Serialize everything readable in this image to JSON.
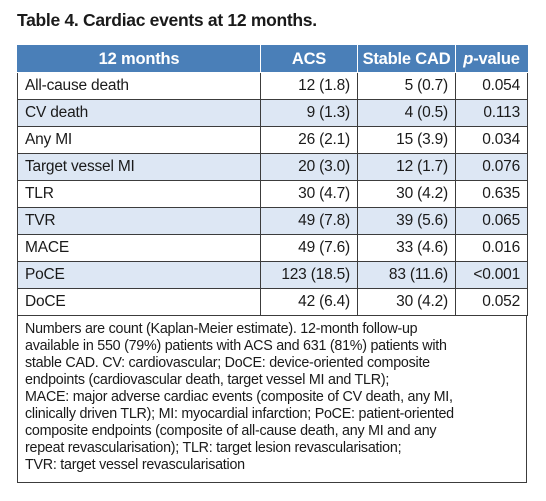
{
  "caption": "Table 4. Cardiac events at 12 months.",
  "header": {
    "col1": "12 months",
    "col2": "ACS",
    "col3": "Stable CAD",
    "col4_italic": "p",
    "col4_rest": "-value"
  },
  "rows": [
    {
      "label": "All-cause death",
      "acs": "12 (1.8)",
      "stable": "5 (0.7)",
      "p": "0.054"
    },
    {
      "label": "CV death",
      "acs": "9 (1.3)",
      "stable": "4 (0.5)",
      "p": "0.113"
    },
    {
      "label": "Any MI",
      "acs": "26 (2.1)",
      "stable": "15 (3.9)",
      "p": "0.034"
    },
    {
      "label": "Target vessel MI",
      "acs": "20 (3.0)",
      "stable": "12 (1.7)",
      "p": "0.076"
    },
    {
      "label": "TLR",
      "acs": "30 (4.7)",
      "stable": "30 (4.2)",
      "p": "0.635"
    },
    {
      "label": "TVR",
      "acs": "49 (7.8)",
      "stable": "39 (5.6)",
      "p": "0.065"
    },
    {
      "label": "MACE",
      "acs": "49 (7.6)",
      "stable": "33 (4.6)",
      "p": "0.016"
    },
    {
      "label": "PoCE",
      "acs": "123 (18.5)",
      "stable": "83 (11.6)",
      "p": "<0.001"
    },
    {
      "label": "DoCE",
      "acs": "42 (6.4)",
      "stable": "30 (4.2)",
      "p": "0.052"
    }
  ],
  "footnote_lines": [
    "Numbers are count (Kaplan-Meier estimate). 12-month follow-up",
    "available in 550 (79%) patients with ACS and 631 (81%) patients with",
    "stable CAD. CV: cardiovascular; DoCE: device-oriented composite",
    "endpoints (cardiovascular death, target vessel MI and TLR);",
    "MACE: major adverse cardiac events (composite of CV death, any MI,",
    "clinically driven TLR); MI: myocardial infarction; PoCE: patient-oriented",
    "composite endpoints (composite of all-cause death, any MI and any",
    "repeat revascularisation); TLR: target lesion revascularisation;",
    "TVR: target vessel revascularisation"
  ]
}
